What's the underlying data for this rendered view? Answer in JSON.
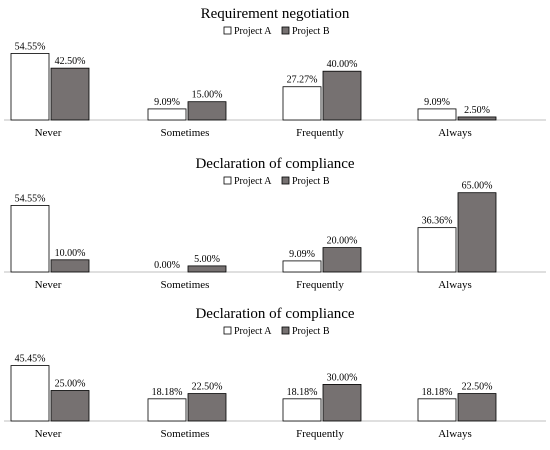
{
  "colors": {
    "project_a": "#ffffff",
    "project_b": "#767171",
    "stroke": "#000000",
    "axis": "#bfbfbf"
  },
  "chart_data": [
    {
      "type": "bar",
      "title": "Requirement negotiation",
      "categories": [
        "Never",
        "Sometimes",
        "Frequently",
        "Always"
      ],
      "series": [
        {
          "name": "Project A",
          "values": [
            54.55,
            9.09,
            27.27,
            9.09
          ],
          "labels": [
            "54.55%",
            "9.09%",
            "27.27%",
            "9.09%"
          ]
        },
        {
          "name": "Project B",
          "values": [
            42.5,
            15.0,
            40.0,
            2.5
          ],
          "labels": [
            "42.50%",
            "15.00%",
            "40.00%",
            "2.50%"
          ]
        }
      ],
      "legend": "top-right",
      "grid": false
    },
    {
      "type": "bar",
      "title": "Declaration of compliance",
      "categories": [
        "Never",
        "Sometimes",
        "Frequently",
        "Always"
      ],
      "series": [
        {
          "name": "Project A",
          "values": [
            54.55,
            0.0,
            9.09,
            36.36
          ],
          "labels": [
            "54.55%",
            "0.00%",
            "9.09%",
            "36.36%"
          ]
        },
        {
          "name": "Project B",
          "values": [
            10.0,
            5.0,
            20.0,
            65.0
          ],
          "labels": [
            "10.00%",
            "5.00%",
            "20.00%",
            "65.00%"
          ]
        }
      ],
      "legend": "top-right",
      "grid": false
    },
    {
      "type": "bar",
      "title": "Declaration of compliance",
      "categories": [
        "Never",
        "Sometimes",
        "Frequently",
        "Always"
      ],
      "series": [
        {
          "name": "Project A",
          "values": [
            45.45,
            18.18,
            18.18,
            18.18
          ],
          "labels": [
            "45.45%",
            "18.18%",
            "18.18%",
            "18.18%"
          ]
        },
        {
          "name": "Project B",
          "values": [
            25.0,
            22.5,
            30.0,
            22.5
          ],
          "labels": [
            "25.00%",
            "22.50%",
            "30.00%",
            "22.50%"
          ]
        }
      ],
      "legend": "top-right",
      "grid": false
    }
  ]
}
